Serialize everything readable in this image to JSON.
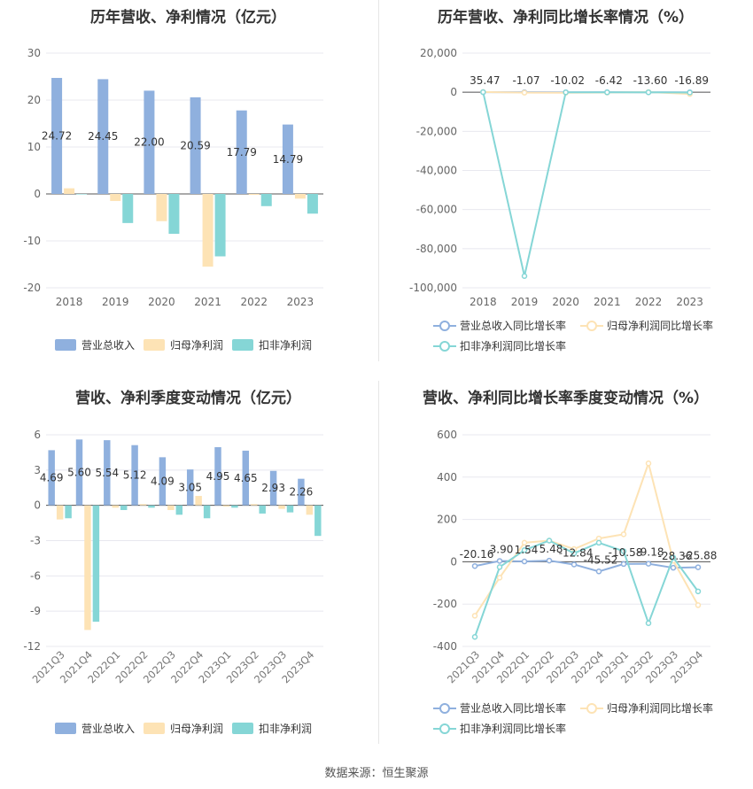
{
  "chart_data": [
    {
      "type": "bar",
      "title": "历年营收、净利情况（亿元）",
      "categories": [
        "2018",
        "2019",
        "2020",
        "2021",
        "2022",
        "2023"
      ],
      "ylim": [
        -20,
        30
      ],
      "yticks": [
        30,
        20,
        10,
        0,
        -10,
        -20
      ],
      "series": [
        {
          "name": "营业总收入",
          "values": [
            24.72,
            24.45,
            22.0,
            20.59,
            17.79,
            14.79
          ],
          "color": "#8fb0de",
          "labels": [
            "24.72",
            "24.45",
            "22.00",
            "20.59",
            "17.79",
            "14.79"
          ]
        },
        {
          "name": "归母净利润",
          "values": [
            1.2,
            -1.5,
            -5.8,
            -15.5,
            -0.2,
            -1.0
          ],
          "color": "#fde3b5"
        },
        {
          "name": "扣非净利润",
          "values": [
            -0.1,
            -6.2,
            -8.5,
            -13.3,
            -2.6,
            -4.2
          ],
          "color": "#85d6d6"
        }
      ],
      "legend": "bottom"
    },
    {
      "type": "line",
      "title": "历年营收、净利同比增长率情况（%）",
      "categories": [
        "2018",
        "2019",
        "2020",
        "2021",
        "2022",
        "2023"
      ],
      "ylim": [
        -100000,
        20000
      ],
      "yticks": [
        "20,000",
        "0",
        "-20,000",
        "-40,000",
        "-60,000",
        "-80,000",
        "-100,000"
      ],
      "series": [
        {
          "name": "营业总收入同比增长率",
          "values": [
            35.47,
            -1.07,
            -10.02,
            -6.42,
            -13.6,
            -16.89
          ],
          "color": "#8fb0de",
          "labels": [
            "35.47",
            "-1.07",
            "-10.02",
            "-6.42",
            "-13.60",
            "-16.89"
          ]
        },
        {
          "name": "归母净利润同比增长率",
          "values": [
            120,
            -220,
            -280,
            -160,
            100,
            -900
          ],
          "color": "#fde3b5"
        },
        {
          "name": "扣非净利润同比增长率",
          "values": [
            50,
            -94000,
            -40,
            -60,
            -20,
            -150
          ],
          "color": "#85d6d6"
        }
      ],
      "legend": "bottom"
    },
    {
      "type": "bar",
      "title": "营收、净利季度变动情况（亿元）",
      "categories": [
        "2021Q3",
        "2021Q4",
        "2022Q1",
        "2022Q2",
        "2022Q3",
        "2022Q4",
        "2023Q1",
        "2023Q2",
        "2023Q3",
        "2023Q4"
      ],
      "ylim": [
        -12,
        6
      ],
      "yticks": [
        6,
        3,
        0,
        -3,
        -6,
        -9,
        -12
      ],
      "series": [
        {
          "name": "营业总收入",
          "values": [
            4.69,
            5.6,
            5.54,
            5.12,
            4.09,
            3.05,
            4.95,
            4.65,
            2.93,
            2.26
          ],
          "color": "#8fb0de",
          "labels": [
            "4.69",
            "5.60",
            "5.54",
            "5.12",
            "4.09",
            "3.05",
            "4.95",
            "4.65",
            "2.93",
            "2.26"
          ]
        },
        {
          "name": "归母净利润",
          "values": [
            -1.2,
            -10.6,
            -0.2,
            0.1,
            -0.4,
            0.8,
            -0.1,
            0.1,
            -0.3,
            -0.8
          ],
          "color": "#fde3b5"
        },
        {
          "name": "扣非净利润",
          "values": [
            -1.1,
            -9.9,
            -0.4,
            -0.2,
            -0.8,
            -1.1,
            -0.2,
            -0.7,
            -0.6,
            -2.6
          ],
          "color": "#85d6d6"
        }
      ],
      "legend": "bottom"
    },
    {
      "type": "line",
      "title": "营收、净利同比增长率季度变动情况（%）",
      "categories": [
        "2021Q3",
        "2021Q4",
        "2022Q1",
        "2022Q2",
        "2022Q3",
        "2022Q4",
        "2023Q1",
        "2023Q2",
        "2023Q3",
        "2023Q4"
      ],
      "ylim": [
        -400,
        600
      ],
      "yticks": [
        600,
        400,
        200,
        0,
        -200,
        -400
      ],
      "series": [
        {
          "name": "营业总收入同比增长率",
          "values": [
            -20.16,
            3.9,
            1.54,
            5.48,
            -12.84,
            -45.52,
            -10.58,
            -9.18,
            -28.36,
            -25.88
          ],
          "color": "#8fb0de",
          "labels": [
            "-20.16",
            "3.90",
            "1.54",
            "5.48",
            "-12.84",
            "-45.52",
            "-10.58",
            "-9.18",
            "-28.36",
            "-25.88"
          ]
        },
        {
          "name": "归母净利润同比增长率",
          "values": [
            -255,
            -75,
            90,
            100,
            60,
            110,
            130,
            465,
            5,
            -205
          ],
          "color": "#fde3b5"
        },
        {
          "name": "扣非净利润同比增长率",
          "values": [
            -355,
            -25,
            55,
            100,
            40,
            90,
            50,
            -290,
            20,
            -140
          ],
          "color": "#85d6d6"
        }
      ],
      "legend": "bottom"
    }
  ],
  "footer": "数据来源：恒生聚源"
}
